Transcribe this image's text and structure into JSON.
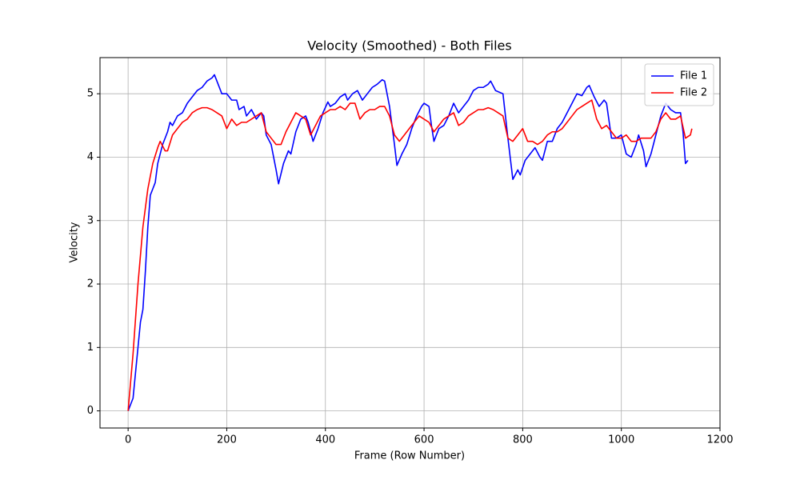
{
  "chart_data": {
    "type": "line",
    "title": "Velocity (Smoothed) - Both Files",
    "xlabel": "Frame (Row Number)",
    "ylabel": "Velocity",
    "xlim": [
      -57,
      1200
    ],
    "ylim": [
      -0.27,
      5.57
    ],
    "xticks": [
      0,
      200,
      400,
      600,
      800,
      1000,
      1200
    ],
    "yticks": [
      0,
      1,
      2,
      3,
      4,
      5
    ],
    "grid": true,
    "legend": "upper right",
    "series": [
      {
        "name": "File 1",
        "color": "#0000ff",
        "x": [
          0,
          10,
          20,
          25,
          30,
          35,
          40,
          45,
          50,
          55,
          60,
          70,
          80,
          85,
          90,
          100,
          110,
          120,
          130,
          140,
          150,
          160,
          170,
          175,
          180,
          190,
          200,
          210,
          220,
          225,
          235,
          240,
          250,
          260,
          270,
          275,
          280,
          290,
          300,
          305,
          315,
          325,
          330,
          340,
          350,
          360,
          365,
          375,
          385,
          395,
          405,
          410,
          420,
          430,
          440,
          445,
          455,
          465,
          475,
          485,
          495,
          505,
          515,
          520,
          530,
          540,
          545,
          555,
          565,
          575,
          585,
          595,
          600,
          610,
          615,
          620,
          630,
          640,
          650,
          660,
          670,
          680,
          690,
          700,
          710,
          720,
          730,
          735,
          745,
          760,
          770,
          780,
          790,
          795,
          805,
          815,
          825,
          835,
          840,
          850,
          860,
          870,
          880,
          890,
          900,
          910,
          920,
          930,
          935,
          945,
          955,
          965,
          970,
          980,
          990,
          1000,
          1010,
          1020,
          1030,
          1035,
          1045,
          1050,
          1060,
          1070,
          1080,
          1090,
          1100,
          1110,
          1120,
          1125,
          1130,
          1135
        ],
        "values": [
          0,
          0.2,
          1.0,
          1.4,
          1.6,
          2.2,
          2.9,
          3.4,
          3.5,
          3.6,
          3.9,
          4.2,
          4.4,
          4.55,
          4.5,
          4.65,
          4.7,
          4.85,
          4.95,
          5.05,
          5.1,
          5.2,
          5.25,
          5.3,
          5.2,
          5.0,
          5.0,
          4.9,
          4.9,
          4.75,
          4.8,
          4.65,
          4.75,
          4.6,
          4.7,
          4.65,
          4.35,
          4.2,
          3.8,
          3.58,
          3.9,
          4.1,
          4.05,
          4.4,
          4.6,
          4.65,
          4.55,
          4.25,
          4.45,
          4.7,
          4.87,
          4.8,
          4.85,
          4.95,
          5.0,
          4.9,
          5.0,
          5.05,
          4.9,
          5.0,
          5.1,
          5.15,
          5.22,
          5.2,
          4.8,
          4.2,
          3.87,
          4.05,
          4.2,
          4.45,
          4.65,
          4.8,
          4.85,
          4.8,
          4.5,
          4.25,
          4.45,
          4.5,
          4.65,
          4.85,
          4.7,
          4.8,
          4.9,
          5.05,
          5.1,
          5.1,
          5.15,
          5.2,
          5.05,
          5.0,
          4.3,
          3.65,
          3.8,
          3.72,
          3.95,
          4.05,
          4.15,
          4.0,
          3.95,
          4.25,
          4.25,
          4.45,
          4.55,
          4.7,
          4.85,
          5.0,
          4.97,
          5.1,
          5.13,
          4.95,
          4.8,
          4.9,
          4.85,
          4.3,
          4.3,
          4.35,
          4.05,
          4.0,
          4.2,
          4.35,
          4.1,
          3.85,
          4.05,
          4.35,
          4.65,
          4.85,
          4.75,
          4.7,
          4.7,
          4.4,
          3.9,
          3.95
        ]
      },
      {
        "name": "File 2",
        "color": "#ff0000",
        "x": [
          0,
          10,
          20,
          30,
          40,
          50,
          60,
          65,
          75,
          80,
          90,
          100,
          110,
          120,
          130,
          140,
          150,
          160,
          170,
          180,
          190,
          200,
          210,
          220,
          230,
          240,
          250,
          260,
          270,
          280,
          290,
          300,
          310,
          320,
          330,
          340,
          350,
          360,
          370,
          380,
          390,
          400,
          410,
          420,
          430,
          440,
          450,
          460,
          470,
          480,
          490,
          500,
          510,
          520,
          530,
          540,
          550,
          560,
          570,
          580,
          590,
          600,
          610,
          620,
          630,
          640,
          650,
          660,
          670,
          680,
          690,
          700,
          710,
          720,
          730,
          740,
          750,
          760,
          770,
          780,
          790,
          800,
          810,
          820,
          830,
          840,
          850,
          860,
          870,
          880,
          890,
          900,
          910,
          920,
          930,
          940,
          950,
          960,
          970,
          980,
          990,
          1000,
          1010,
          1020,
          1030,
          1040,
          1050,
          1060,
          1070,
          1080,
          1090,
          1100,
          1110,
          1120,
          1130,
          1140,
          1143
        ],
        "values": [
          0,
          0.9,
          2.0,
          2.9,
          3.5,
          3.9,
          4.15,
          4.25,
          4.1,
          4.1,
          4.35,
          4.45,
          4.55,
          4.6,
          4.7,
          4.75,
          4.78,
          4.78,
          4.75,
          4.7,
          4.65,
          4.45,
          4.6,
          4.5,
          4.55,
          4.55,
          4.6,
          4.65,
          4.7,
          4.4,
          4.3,
          4.2,
          4.2,
          4.4,
          4.55,
          4.7,
          4.65,
          4.6,
          4.35,
          4.5,
          4.65,
          4.7,
          4.75,
          4.75,
          4.8,
          4.75,
          4.85,
          4.85,
          4.6,
          4.7,
          4.75,
          4.75,
          4.8,
          4.8,
          4.65,
          4.35,
          4.25,
          4.35,
          4.45,
          4.55,
          4.65,
          4.6,
          4.55,
          4.4,
          4.5,
          4.6,
          4.65,
          4.7,
          4.5,
          4.55,
          4.65,
          4.7,
          4.75,
          4.75,
          4.78,
          4.75,
          4.7,
          4.65,
          4.3,
          4.25,
          4.35,
          4.45,
          4.25,
          4.25,
          4.2,
          4.25,
          4.35,
          4.4,
          4.4,
          4.45,
          4.55,
          4.65,
          4.75,
          4.8,
          4.85,
          4.9,
          4.6,
          4.45,
          4.5,
          4.4,
          4.3,
          4.3,
          4.35,
          4.25,
          4.25,
          4.3,
          4.3,
          4.3,
          4.4,
          4.6,
          4.7,
          4.6,
          4.6,
          4.65,
          4.3,
          4.35,
          4.45
        ]
      }
    ]
  }
}
